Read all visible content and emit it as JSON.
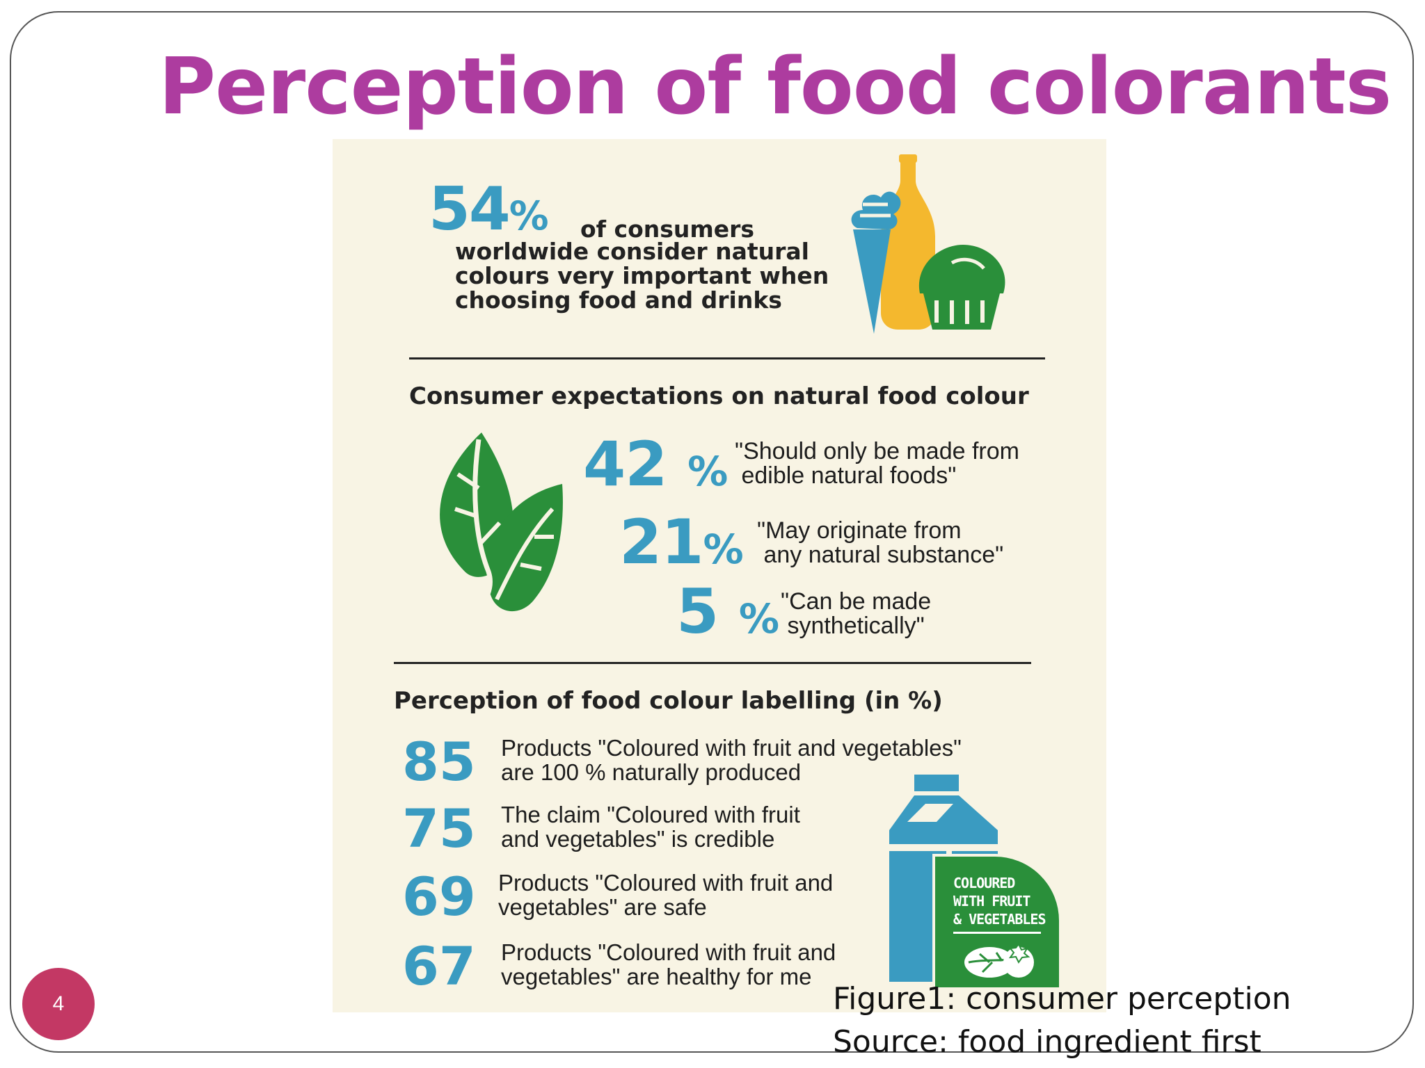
{
  "slide": {
    "title": "Perception of food colorants",
    "page_number": "4"
  },
  "infographic": {
    "intro": {
      "percent_value": "54",
      "percent_sign": "%",
      "line1": "of consumers",
      "lines_rest": "worldwide consider natural\ncolours very important when\nchoosing food and drinks"
    },
    "expectations": {
      "heading": "Consumer expectations on natural food colour",
      "items": [
        {
          "value": "42",
          "sign": "%",
          "text": "\"Should only be made from\n edible natural foods\""
        },
        {
          "value": "21",
          "sign": "%",
          "text": "\"May originate from\n any natural substance\""
        },
        {
          "value": "5",
          "sign": "%",
          "text": "\"Can be made\n synthetically\""
        }
      ]
    },
    "labelling": {
      "heading": "Perception of food colour labelling (in %)",
      "items": [
        {
          "value": "85",
          "text": "Products \"Coloured with fruit and vegetables\"\nare 100 % naturally produced"
        },
        {
          "value": "75",
          "text": "The claim \"Coloured with fruit\nand vegetables\" is credible"
        },
        {
          "value": "69",
          "text": "Products \"Coloured with fruit and\nvegetables\" are safe"
        },
        {
          "value": "67",
          "text": "Products \"Coloured with fruit and\nvegetables\" are healthy for me"
        }
      ],
      "badge_lines": [
        "COLOURED",
        "WITH FRUIT",
        "& VEGETABLES"
      ]
    }
  },
  "caption": {
    "line1": "Figure1: consumer perception",
    "line2": "Source: food ingredient first"
  },
  "colors": {
    "title": "#ad3c9f",
    "stat_blue": "#3a9bc1",
    "leaf_green": "#2a8f3a",
    "bottle_yellow": "#f4b82e",
    "background": "#f8f4e4",
    "page_badge": "#c33864"
  }
}
